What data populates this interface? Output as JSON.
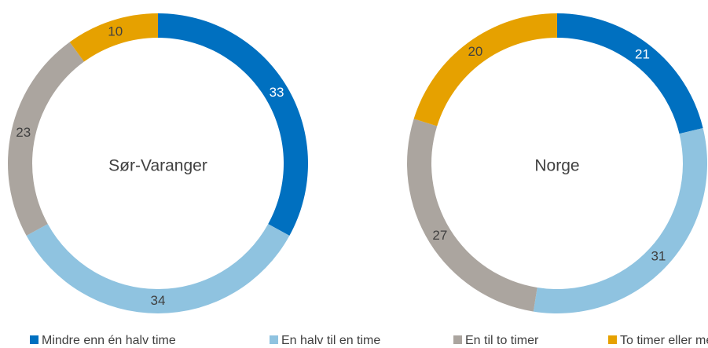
{
  "chart_data": [
    {
      "type": "pie",
      "center_label": "Sør-Varanger",
      "categories": [
        "Mindre enn én halv time",
        "En halv til en time",
        "En til to timer",
        "To timer eller mer"
      ],
      "colors": [
        "#0070c0",
        "#8fc3e0",
        "#aba59f",
        "#e6a100"
      ],
      "values": [
        33,
        34,
        23,
        10
      ]
    },
    {
      "type": "pie",
      "center_label": "Norge",
      "values": [
        21,
        31,
        27,
        20
      ]
    }
  ]
}
